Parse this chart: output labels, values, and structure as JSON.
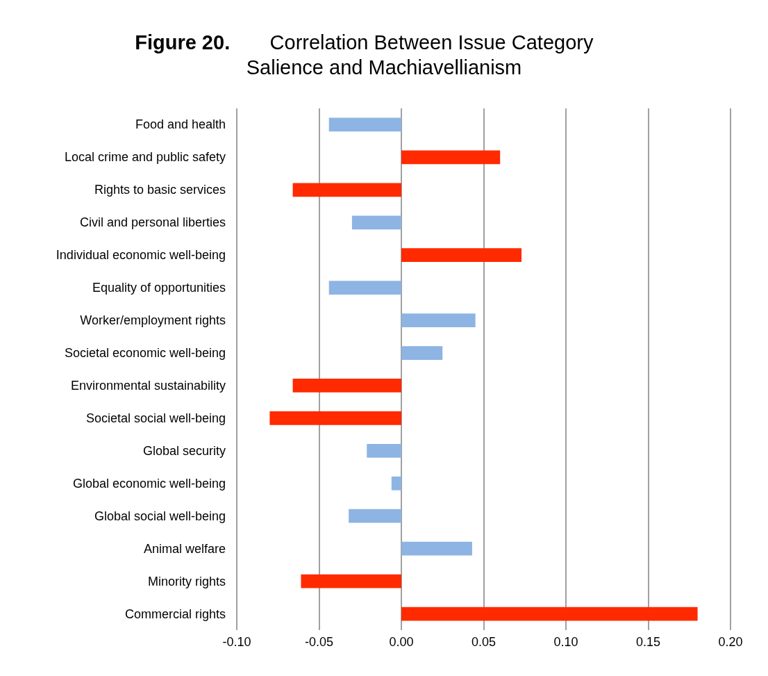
{
  "chart_data": {
    "type": "bar",
    "orientation": "horizontal",
    "title": "Figure 20. Correlation Between Issue Category Salience and Machiavellianism",
    "categories": [
      "Food and health",
      "Local crime and public safety",
      "Rights to basic services",
      "Civil and personal liberties",
      "Individual economic well-being",
      "Equality of opportunities",
      "Worker/employment rights",
      "Societal economic well-being",
      "Environmental sustainability",
      "Societal social well-being",
      "Global security",
      "Global economic well-being",
      "Global social well-being",
      "Animal welfare",
      "Minority rights",
      "Commercial rights"
    ],
    "values": [
      -0.044,
      0.06,
      -0.066,
      -0.03,
      0.073,
      -0.044,
      0.045,
      0.025,
      -0.066,
      -0.08,
      -0.021,
      -0.006,
      -0.032,
      0.043,
      -0.061,
      0.18
    ],
    "colors": [
      "#8db4e2",
      "#ff2a00",
      "#ff2a00",
      "#8db4e2",
      "#ff2a00",
      "#8db4e2",
      "#8db4e2",
      "#8db4e2",
      "#ff2a00",
      "#ff2a00",
      "#8db4e2",
      "#8db4e2",
      "#8db4e2",
      "#8db4e2",
      "#ff2a00",
      "#ff2a00"
    ],
    "xlim": [
      -0.1,
      0.2
    ],
    "xticks": [
      {
        "value": -0.1,
        "label": "-0.10"
      },
      {
        "value": -0.05,
        "label": "-0.05"
      },
      {
        "value": 0,
        "label": "0.00"
      },
      {
        "value": 0.05,
        "label": "0.05"
      },
      {
        "value": 0.1,
        "label": "0.10"
      },
      {
        "value": 0.15,
        "label": "0.15"
      },
      {
        "value": 0.2,
        "label": "0.20"
      }
    ],
    "grid": "x",
    "legend": false
  }
}
